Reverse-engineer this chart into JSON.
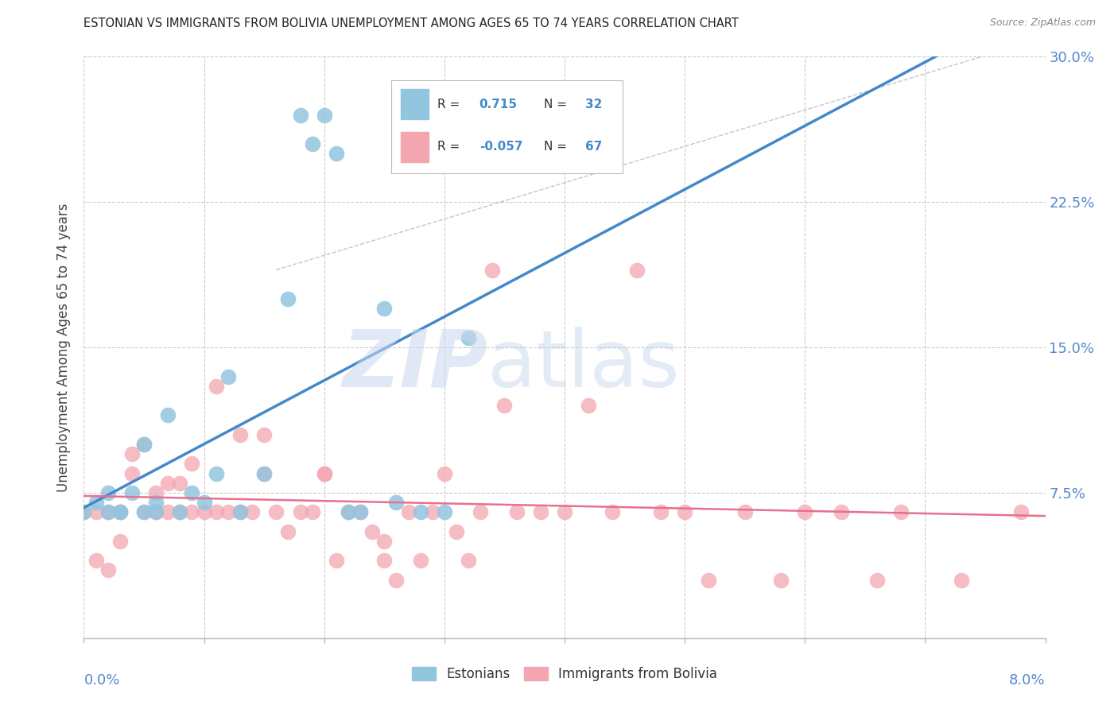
{
  "title": "ESTONIAN VS IMMIGRANTS FROM BOLIVIA UNEMPLOYMENT AMONG AGES 65 TO 74 YEARS CORRELATION CHART",
  "source": "Source: ZipAtlas.com",
  "ylabel": "Unemployment Among Ages 65 to 74 years",
  "xmin": 0.0,
  "xmax": 0.08,
  "ymin": 0.0,
  "ymax": 0.3,
  "yticks": [
    0.0,
    0.075,
    0.15,
    0.225,
    0.3
  ],
  "ytick_labels": [
    "",
    "7.5%",
    "15.0%",
    "22.5%",
    "30.0%"
  ],
  "series1_color": "#92c5de",
  "series2_color": "#f4a6b0",
  "series1_label": "Estonians",
  "series2_label": "Immigrants from Bolivia",
  "series1_R": "0.715",
  "series1_N": "32",
  "series2_R": "-0.057",
  "series2_N": "67",
  "trend1_color": "#4488cc",
  "trend2_color": "#e87090",
  "watermark_zip": "ZIP",
  "watermark_atlas": "atlas",
  "estonians_x": [
    0.0,
    0.001,
    0.002,
    0.002,
    0.003,
    0.003,
    0.004,
    0.005,
    0.005,
    0.006,
    0.006,
    0.007,
    0.008,
    0.009,
    0.01,
    0.011,
    0.012,
    0.013,
    0.015,
    0.017,
    0.018,
    0.019,
    0.02,
    0.021,
    0.022,
    0.023,
    0.025,
    0.026,
    0.028,
    0.03,
    0.032,
    0.036
  ],
  "estonians_y": [
    0.065,
    0.07,
    0.065,
    0.075,
    0.065,
    0.065,
    0.075,
    0.065,
    0.1,
    0.065,
    0.07,
    0.115,
    0.065,
    0.075,
    0.07,
    0.085,
    0.135,
    0.065,
    0.085,
    0.175,
    0.27,
    0.255,
    0.27,
    0.25,
    0.065,
    0.065,
    0.17,
    0.07,
    0.065,
    0.065,
    0.155,
    0.245
  ],
  "bolivia_x": [
    0.0,
    0.001,
    0.001,
    0.002,
    0.002,
    0.003,
    0.003,
    0.004,
    0.004,
    0.005,
    0.005,
    0.006,
    0.006,
    0.007,
    0.007,
    0.008,
    0.008,
    0.009,
    0.009,
    0.01,
    0.011,
    0.011,
    0.012,
    0.013,
    0.013,
    0.014,
    0.015,
    0.015,
    0.016,
    0.017,
    0.018,
    0.019,
    0.02,
    0.02,
    0.021,
    0.022,
    0.023,
    0.024,
    0.025,
    0.025,
    0.026,
    0.027,
    0.028,
    0.029,
    0.03,
    0.031,
    0.032,
    0.033,
    0.034,
    0.035,
    0.036,
    0.038,
    0.04,
    0.042,
    0.044,
    0.046,
    0.048,
    0.05,
    0.052,
    0.055,
    0.058,
    0.06,
    0.063,
    0.066,
    0.068,
    0.073,
    0.078
  ],
  "bolivia_y": [
    0.065,
    0.04,
    0.065,
    0.035,
    0.065,
    0.05,
    0.065,
    0.085,
    0.095,
    0.065,
    0.1,
    0.065,
    0.075,
    0.065,
    0.08,
    0.065,
    0.08,
    0.065,
    0.09,
    0.065,
    0.13,
    0.065,
    0.065,
    0.065,
    0.105,
    0.065,
    0.085,
    0.105,
    0.065,
    0.055,
    0.065,
    0.065,
    0.085,
    0.085,
    0.04,
    0.065,
    0.065,
    0.055,
    0.05,
    0.04,
    0.03,
    0.065,
    0.04,
    0.065,
    0.085,
    0.055,
    0.04,
    0.065,
    0.19,
    0.12,
    0.065,
    0.065,
    0.065,
    0.12,
    0.065,
    0.19,
    0.065,
    0.065,
    0.03,
    0.065,
    0.03,
    0.065,
    0.065,
    0.03,
    0.065,
    0.03,
    0.065
  ]
}
